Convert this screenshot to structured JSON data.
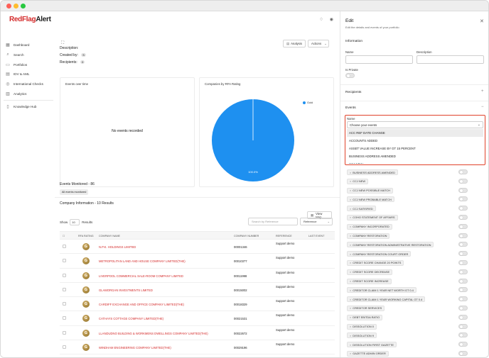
{
  "brand": {
    "logo_red": "RedFlag",
    "logo_dark": "Alert"
  },
  "sidebar": {
    "items": [
      {
        "label": "Dashboard",
        "icon": "grid-icon"
      },
      {
        "label": "Search",
        "icon": "search-icon"
      },
      {
        "label": "Portfolios",
        "icon": "folder-icon"
      },
      {
        "label": "IDV & AML",
        "icon": "id-card-icon"
      },
      {
        "label": "International Checks",
        "icon": "globe-icon"
      },
      {
        "label": "Analytics",
        "icon": "chart-icon"
      },
      {
        "label": "Knowledge Hub",
        "icon": "book-icon"
      }
    ]
  },
  "portfolio": {
    "description_label": "Description:",
    "created_by_label": "Created by:",
    "created_by_value": "S",
    "recipients_label": "Recipients:",
    "recipients_value": "0",
    "analysis_button": "Analysis",
    "actions_button": "Actions"
  },
  "events_over_time": {
    "title": "Events over time",
    "empty_text": "No events recorded"
  },
  "companies_by_rating": {
    "title": "Companies by RFA Rating",
    "legend_label": "Gold",
    "slice_label": "100.0%"
  },
  "chart_data": {
    "type": "pie",
    "title": "Companies by RFA Rating",
    "categories": [
      "Gold"
    ],
    "values": [
      100
    ],
    "colors": [
      "#1e90f0"
    ],
    "legend": "top-right"
  },
  "events_monitored": {
    "title": "Events Monitored - 86",
    "badge": "All events monitored"
  },
  "company_info": {
    "title": "Company Information - 10 Results",
    "view_map_button": "View Map",
    "show_label": "Show",
    "show_value": "10",
    "results_label": "Results",
    "search_placeholder": "Search by Reference",
    "sort_value": "Reference",
    "columns": {
      "rating": "RFA RATING",
      "name": "COMPANY NAME",
      "number": "COMPANY NUMBER",
      "reference": "REFERENCE",
      "last_event": "LAST EVENT"
    },
    "rows": [
      {
        "rating": "G",
        "name": "N.P.K. HOLDINGS LIMITED",
        "number": "00001346",
        "reference": "Support demo"
      },
      {
        "rating": "G",
        "name": "METROPOLITAN LAND AND HOUSE COMPANY LIMITED(THE)",
        "number": "00010377",
        "reference": "Support demo"
      },
      {
        "rating": "G",
        "name": "LIVERPOOL COMMERCIAL SALE-ROOM COMPANY LIMITED",
        "number": "00011998",
        "reference": "Support demo"
      },
      {
        "rating": "G",
        "name": "GLAMORGAN INVESTMENTS LIMITED",
        "number": "00015002",
        "reference": "Support demo"
      },
      {
        "rating": "G",
        "name": "CARDIFF EXCHANGE AND OFFICE COMPANY LIMITED(THE)",
        "number": "00018329",
        "reference": "Support demo"
      },
      {
        "rating": "G",
        "name": "CATHAYS COTTAGE COMPANY LIMITED(THE)",
        "number": "00021531",
        "reference": "Support demo"
      },
      {
        "rating": "G",
        "name": "LLANDUDNO BUILDING & WORKMENS DWELLINGS COMPANY LIMITED(THE)",
        "number": "00022672",
        "reference": "Support demo"
      },
      {
        "rating": "G",
        "name": "WINDHAM ENGINEERING COMPANY LIMITED(THE)",
        "number": "00029196",
        "reference": "Support demo"
      }
    ]
  },
  "edit_panel": {
    "title": "Edit",
    "subtitle": "Edit the details and events of your portfolio",
    "information_heading": "Information",
    "name_label": "Name",
    "description_label": "Description",
    "private_label": "Is Private",
    "recipients_heading": "Recipients",
    "events_heading": "Events",
    "dropdown_name_label": "Name",
    "dropdown_value": "Choose your events",
    "dropdown_options": [
      "ACC REF DATE CHANGE",
      "ACCOUNTS ADDED",
      "ASSET VALUE INCREASE BY GT 15 PERCENT",
      "BUSINESS ADDRESS AMENDED",
      "CCJ NEW"
    ],
    "event_tags": [
      "BUSINESS ADDRESS AMENDED",
      "CCJ NEW",
      "CCJ NEW POSSIBLE MATCH",
      "CCJ NEW PROBABLE MATCH",
      "CCJ SATISFIED",
      "COHO STATEMENT OF AFFAIRS",
      "COMPANY INCORPORATED",
      "COMPANY RESTORATION",
      "COMPANY RESTORATION ADMINISTRATIVE RESTORATION",
      "COMPANY RESTORATION COURT ORDER",
      "CREDIT SCORE CHANGE 20 POINTS",
      "CREDIT SCORE DECREASE",
      "CREDIT SCORE INCREASE",
      "CREDITOR CLAIM 1 YEAR NET WORTH GT 0.4",
      "CREDITOR CLAIM 1 YEAR WORKING CAPITAL GT 0.4",
      "CREDITOR SERVICES",
      "DEBT EBITDA RATIO",
      "DISSOLUTION 0",
      "DISSOLUTION 9",
      "DISSOLUTION FIRST GAZETTE",
      "GAZETTE ADMIN ORDER"
    ]
  }
}
